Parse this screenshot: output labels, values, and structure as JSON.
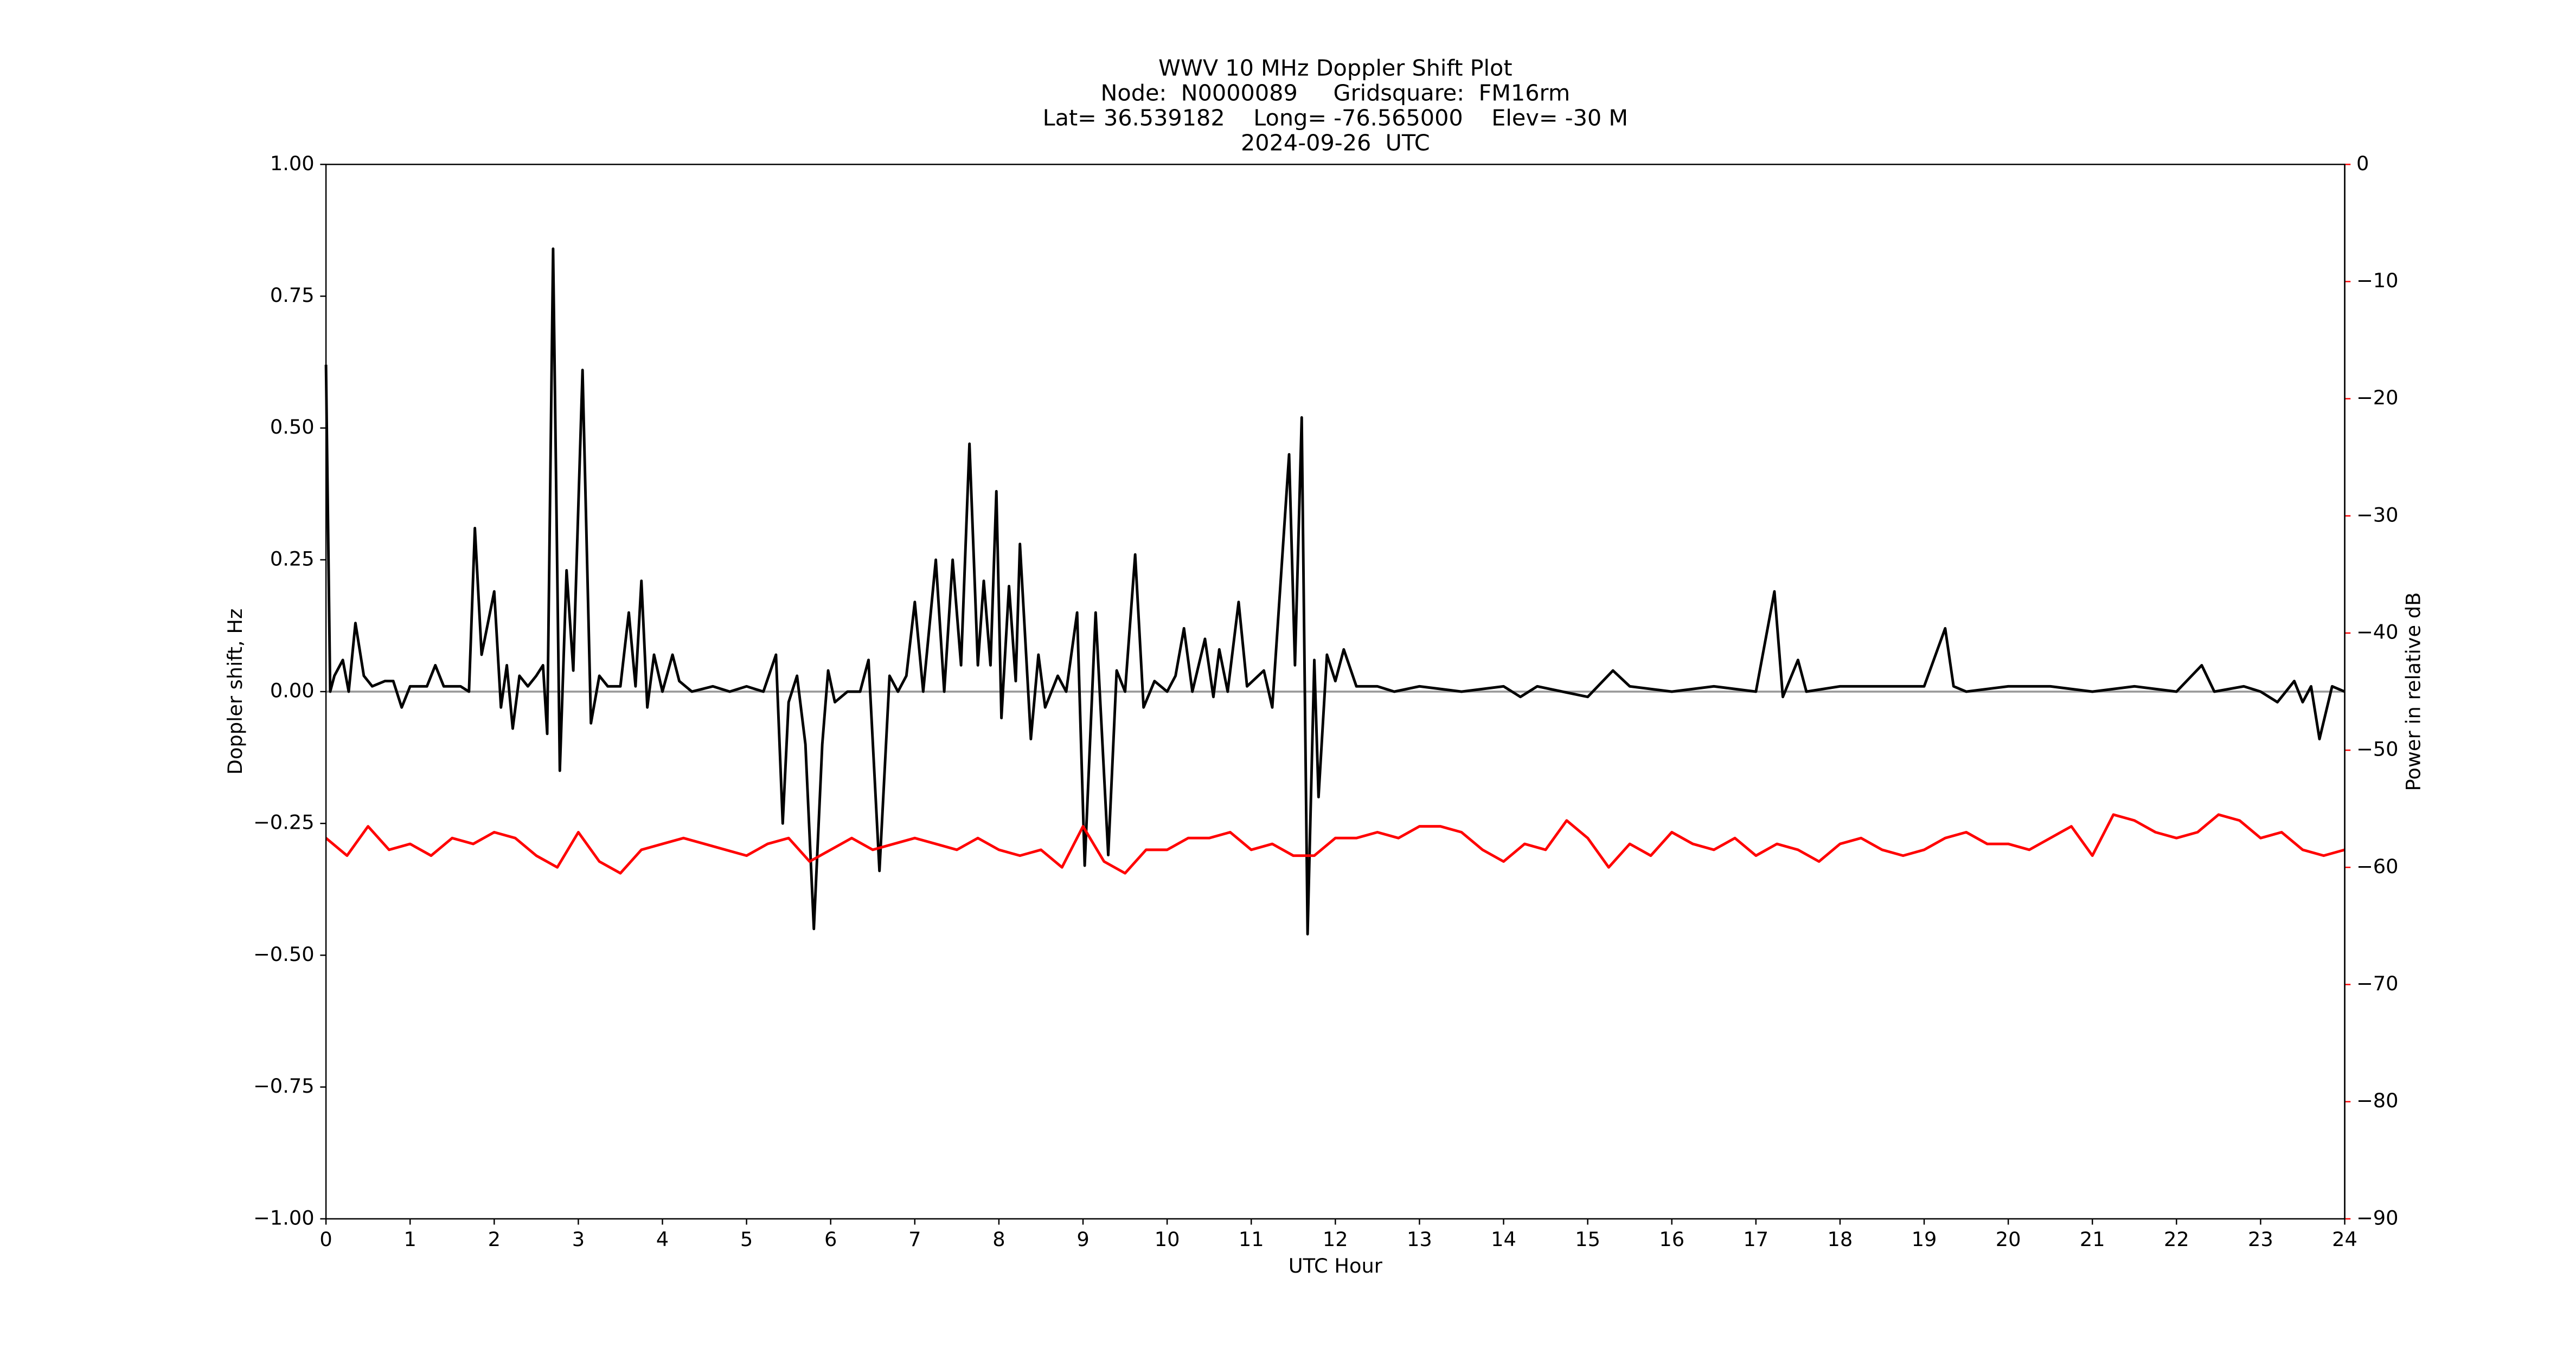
{
  "chart_data": {
    "type": "line",
    "title": "WWV 10 MHz Doppler Shift Plot",
    "subtitle": [
      "Node:  N0000089     Gridsquare:  FM16rm",
      "Lat= 36.539182    Long= -76.565000    Elev= -30 M",
      "2024-09-26  UTC"
    ],
    "xlabel": "UTC Hour",
    "ylabel": "Doppler shift, Hz",
    "y2label": "Power in relative dB",
    "y2color": "#ff0000",
    "xlim": [
      0,
      24
    ],
    "xticks": [
      0,
      1,
      2,
      3,
      4,
      5,
      6,
      7,
      8,
      9,
      10,
      11,
      12,
      13,
      14,
      15,
      16,
      17,
      18,
      19,
      20,
      21,
      22,
      23,
      24
    ],
    "ylim": [
      -1,
      1
    ],
    "yticks": [
      {
        "value": -1,
        "label": "−1.00"
      },
      {
        "value": -0.75,
        "label": "−0.75"
      },
      {
        "value": -0.5,
        "label": "−0.50"
      },
      {
        "value": -0.25,
        "label": "−0.25"
      },
      {
        "value": 0,
        "label": "0.00"
      },
      {
        "value": 0.25,
        "label": "0.25"
      },
      {
        "value": 0.5,
        "label": "0.50"
      },
      {
        "value": 0.75,
        "label": "0.75"
      },
      {
        "value": 1,
        "label": "1.00"
      }
    ],
    "y2lim": [
      -90,
      0
    ],
    "y2ticks": [
      {
        "value": -90,
        "label": "−90"
      },
      {
        "value": -80,
        "label": "−80"
      },
      {
        "value": -70,
        "label": "−70"
      },
      {
        "value": -60,
        "label": "−60"
      },
      {
        "value": -50,
        "label": "−50"
      },
      {
        "value": -40,
        "label": "−40"
      },
      {
        "value": -30,
        "label": "−30"
      },
      {
        "value": -20,
        "label": "−20"
      },
      {
        "value": -10,
        "label": "−10"
      },
      0
    ],
    "reference_line": 0,
    "reference_color": "#999999",
    "series": [
      {
        "color": "#000000",
        "x": [
          0,
          0.05,
          0.1,
          0.2,
          0.27,
          0.35,
          0.45,
          0.55,
          0.7,
          0.8,
          0.9,
          1.0,
          1.2,
          1.3,
          1.4,
          1.6,
          1.7,
          1.77,
          1.85,
          1.95,
          2.0,
          2.08,
          2.15,
          2.22,
          2.3,
          2.4,
          2.5,
          2.58,
          2.63,
          2.7,
          2.78,
          2.86,
          2.94,
          3.05,
          3.15,
          3.25,
          3.35,
          3.5,
          3.6,
          3.68,
          3.75,
          3.82,
          3.9,
          4.0,
          4.12,
          4.2,
          4.35,
          4.6,
          4.8,
          5.0,
          5.2,
          5.35,
          5.43,
          5.5,
          5.6,
          5.7,
          5.8,
          5.9,
          5.97,
          6.05,
          6.2,
          6.35,
          6.45,
          6.58,
          6.7,
          6.8,
          6.9,
          7.0,
          7.1,
          7.25,
          7.35,
          7.45,
          7.55,
          7.65,
          7.75,
          7.82,
          7.9,
          7.97,
          8.03,
          8.12,
          8.2,
          8.25,
          8.38,
          8.47,
          8.55,
          8.7,
          8.8,
          8.93,
          9.02,
          9.15,
          9.3,
          9.4,
          9.5,
          9.62,
          9.72,
          9.85,
          10.0,
          10.1,
          10.2,
          10.3,
          10.45,
          10.55,
          10.62,
          10.72,
          10.85,
          10.95,
          11.15,
          11.25,
          11.45,
          11.52,
          11.6,
          11.67,
          11.75,
          11.8,
          11.9,
          12.0,
          12.1,
          12.25,
          12.5,
          12.7,
          13.0,
          13.5,
          14.0,
          14.2,
          14.4,
          14.7,
          15.0,
          15.3,
          15.5,
          16.0,
          16.5,
          17.0,
          17.22,
          17.32,
          17.5,
          17.6,
          18.0,
          18.5,
          19.0,
          19.25,
          19.35,
          19.5,
          20.0,
          20.5,
          21.0,
          21.5,
          22.0,
          22.3,
          22.45,
          22.8,
          23.0,
          23.2,
          23.4,
          23.5,
          23.6,
          23.7,
          23.85,
          24.0
        ],
        "values": [
          0.62,
          0.0,
          0.03,
          0.06,
          0.0,
          0.13,
          0.03,
          0.01,
          0.02,
          0.02,
          -0.03,
          0.01,
          0.01,
          0.05,
          0.01,
          0.01,
          0.0,
          0.31,
          0.07,
          0.15,
          0.19,
          -0.03,
          0.05,
          -0.07,
          0.03,
          0.01,
          0.03,
          0.05,
          -0.08,
          0.84,
          -0.15,
          0.23,
          0.04,
          0.61,
          -0.06,
          0.03,
          0.01,
          0.01,
          0.15,
          0.01,
          0.21,
          -0.03,
          0.07,
          0.0,
          0.07,
          0.02,
          0.0,
          0.01,
          0.0,
          0.01,
          0.0,
          0.07,
          -0.25,
          -0.02,
          0.03,
          -0.1,
          -0.45,
          -0.1,
          0.04,
          -0.02,
          0.0,
          0.0,
          0.06,
          -0.34,
          0.03,
          0.0,
          0.03,
          0.17,
          0.0,
          0.25,
          0.0,
          0.25,
          0.05,
          0.47,
          0.05,
          0.21,
          0.05,
          0.38,
          -0.05,
          0.2,
          0.02,
          0.28,
          -0.09,
          0.07,
          -0.03,
          0.03,
          0.0,
          0.15,
          -0.33,
          0.15,
          -0.31,
          0.04,
          0.0,
          0.26,
          -0.03,
          0.02,
          0.0,
          0.03,
          0.12,
          0.0,
          0.1,
          -0.01,
          0.08,
          0.0,
          0.17,
          0.01,
          0.04,
          -0.03,
          0.45,
          0.05,
          0.52,
          -0.46,
          0.06,
          -0.2,
          0.07,
          0.02,
          0.08,
          0.01,
          0.01,
          0.0,
          0.01,
          0.0,
          0.01,
          -0.01,
          0.01,
          0.0,
          -0.01,
          0.04,
          0.01,
          0.0,
          0.01,
          0.0,
          0.19,
          -0.01,
          0.06,
          0.0,
          0.01,
          0.01,
          0.01,
          0.12,
          0.01,
          0.0,
          0.01,
          0.01,
          0.0,
          0.01,
          0.0,
          0.05,
          0.0,
          0.01,
          0.0,
          -0.02,
          0.02,
          -0.02,
          0.01,
          -0.09,
          0.01,
          0.0
        ]
      },
      {
        "color": "#ff0000",
        "axis": "y2",
        "x": [
          0,
          0.25,
          0.5,
          0.75,
          1,
          1.25,
          1.5,
          1.75,
          2,
          2.25,
          2.5,
          2.75,
          3,
          3.25,
          3.5,
          3.75,
          4,
          4.25,
          4.5,
          4.75,
          5,
          5.25,
          5.5,
          5.75,
          6,
          6.25,
          6.5,
          6.75,
          7,
          7.25,
          7.5,
          7.75,
          8,
          8.25,
          8.5,
          8.75,
          9,
          9.25,
          9.5,
          9.75,
          10,
          10.25,
          10.5,
          10.75,
          11,
          11.25,
          11.5,
          11.75,
          12,
          12.25,
          12.5,
          12.75,
          13,
          13.25,
          13.5,
          13.75,
          14,
          14.25,
          14.5,
          14.75,
          15,
          15.25,
          15.5,
          15.75,
          16,
          16.25,
          16.5,
          16.75,
          17,
          17.25,
          17.5,
          17.75,
          18,
          18.25,
          18.5,
          18.75,
          19,
          19.25,
          19.5,
          19.75,
          20,
          20.25,
          20.5,
          20.75,
          21,
          21.25,
          21.5,
          21.75,
          22,
          22.25,
          22.5,
          22.75,
          23,
          23.25,
          23.5,
          23.75,
          24
        ],
        "values": [
          -57.5,
          -59,
          -56.5,
          -58.5,
          -58,
          -59,
          -57.5,
          -58,
          -57,
          -57.5,
          -59,
          -60,
          -57,
          -59.5,
          -60.5,
          -58.5,
          -58,
          -57.5,
          -58,
          -58.5,
          -59,
          -58,
          -57.5,
          -59.5,
          -58.5,
          -57.5,
          -58.5,
          -58,
          -57.5,
          -58,
          -58.5,
          -57.5,
          -58.5,
          -59,
          -58.5,
          -60,
          -56.5,
          -59.5,
          -60.5,
          -58.5,
          -58.5,
          -57.5,
          -57.5,
          -57,
          -58.5,
          -58,
          -59,
          -59,
          -57.5,
          -57.5,
          -57,
          -57.5,
          -56.5,
          -56.5,
          -57,
          -58.5,
          -59.5,
          -58,
          -58.5,
          -56,
          -57.5,
          -60,
          -58,
          -59,
          -57,
          -58,
          -58.5,
          -57.5,
          -59,
          -58,
          -58.5,
          -59.5,
          -58,
          -57.5,
          -58.5,
          -59,
          -58.5,
          -57.5,
          -57,
          -58,
          -58,
          -58.5,
          -57.5,
          -56.5,
          -59,
          -55.5,
          -56,
          -57,
          -57.5,
          -57,
          -55.5,
          -56,
          -57.5,
          -57,
          -58.5,
          -59,
          -58.5
        ]
      }
    ]
  }
}
